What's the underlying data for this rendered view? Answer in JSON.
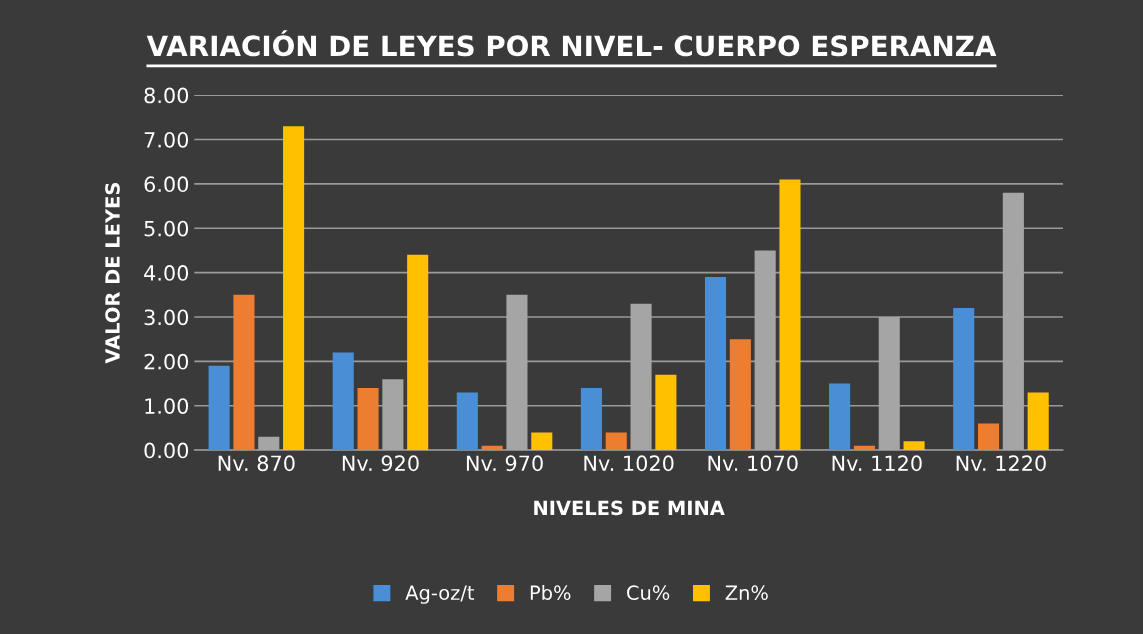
{
  "chart_data": {
    "type": "bar",
    "title": "VARIACIÓN DE LEYES POR NIVEL- CUERPO ESPERANZA",
    "xlabel": "NIVELES DE MINA",
    "ylabel": "VALOR DE LEYES",
    "categories": [
      "Nv. 870",
      "Nv. 920",
      "Nv. 970",
      "Nv. 1020",
      "Nv. 1070",
      "Nv. 1120",
      "Nv. 1220"
    ],
    "series": [
      {
        "name": "Ag-oz/t",
        "color": "#4a8fd6",
        "values": [
          1.9,
          2.2,
          1.3,
          1.4,
          3.9,
          1.5,
          3.2
        ]
      },
      {
        "name": "Pb%",
        "color": "#ed7d31",
        "values": [
          3.5,
          1.4,
          0.1,
          0.4,
          2.5,
          0.1,
          0.6
        ]
      },
      {
        "name": "Cu%",
        "color": "#a5a5a5",
        "values": [
          0.3,
          1.6,
          3.5,
          3.3,
          4.5,
          3.0,
          5.8
        ]
      },
      {
        "name": "Zn%",
        "color": "#ffc000",
        "values": [
          7.3,
          4.4,
          0.4,
          1.7,
          6.1,
          0.2,
          1.3
        ]
      }
    ],
    "ylim": [
      0,
      8
    ],
    "yticks": [
      {
        "value": 0,
        "label": "0.00"
      },
      {
        "value": 1,
        "label": "1.00"
      },
      {
        "value": 2,
        "label": "2.00"
      },
      {
        "value": 3,
        "label": "3.00"
      },
      {
        "value": 4,
        "label": "4.00"
      },
      {
        "value": 5,
        "label": "5.00"
      },
      {
        "value": 6,
        "label": "6.00"
      },
      {
        "value": 7,
        "label": "7.00"
      },
      {
        "value": 8,
        "label": "8.00"
      }
    ],
    "grid": "y",
    "legend": "bottom"
  }
}
